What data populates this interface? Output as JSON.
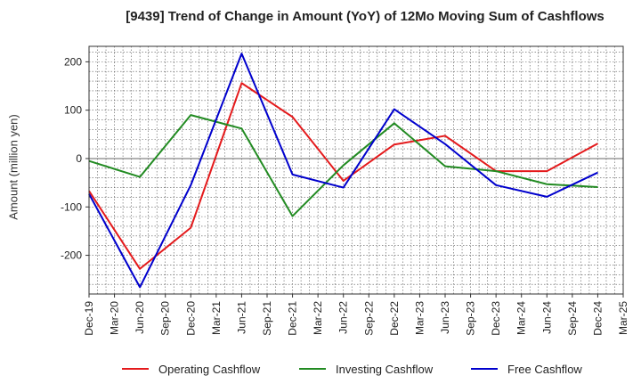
{
  "chart_data": {
    "type": "line",
    "title": "[9439]  Trend of Change in Amount (YoY) of 12Mo Moving Sum of Cashflows",
    "xlabel": "",
    "ylabel": "Amount (million yen)",
    "categories": [
      "Dec-19",
      "Mar-20",
      "Jun-20",
      "Sep-20",
      "Dec-20",
      "Mar-21",
      "Jun-21",
      "Sep-21",
      "Dec-21",
      "Mar-22",
      "Jun-22",
      "Sep-22",
      "Dec-22",
      "Mar-23",
      "Jun-23",
      "Sep-23",
      "Dec-23",
      "Mar-24",
      "Jun-24",
      "Sep-24",
      "Dec-24",
      "Mar-25"
    ],
    "ylim": [
      -280,
      232
    ],
    "yticks": [
      200,
      100,
      0,
      -100,
      -200
    ],
    "grid": true,
    "legend_position": "bottom",
    "series": [
      {
        "name": "Operating Cashflow",
        "color": "#e41a1c",
        "x": [
          "Dec-19",
          "Jun-20",
          "Dec-20",
          "Jun-21",
          "Dec-21",
          "Jun-22",
          "Dec-22",
          "Jun-23",
          "Dec-23",
          "Jun-24",
          "Dec-24"
        ],
        "values": [
          -67,
          -228,
          -143,
          156,
          86,
          -46,
          29,
          47,
          -26,
          -26,
          31
        ]
      },
      {
        "name": "Investing Cashflow",
        "color": "#228b22",
        "x": [
          "Dec-19",
          "Jun-20",
          "Dec-20",
          "Jun-21",
          "Dec-21",
          "Jun-22",
          "Dec-22",
          "Jun-23",
          "Dec-23",
          "Jun-24",
          "Dec-24"
        ],
        "values": [
          -5,
          -38,
          90,
          62,
          -119,
          -14,
          73,
          -16,
          -26,
          -53,
          -59
        ]
      },
      {
        "name": "Free Cashflow",
        "color": "#0000cd",
        "x": [
          "Dec-19",
          "Jun-20",
          "Dec-20",
          "Jun-21",
          "Dec-21",
          "Jun-22",
          "Dec-22",
          "Jun-23",
          "Dec-23",
          "Jun-24",
          "Dec-24"
        ],
        "values": [
          -73,
          -266,
          -55,
          217,
          -33,
          -60,
          102,
          30,
          -55,
          -79,
          -29
        ]
      }
    ]
  }
}
